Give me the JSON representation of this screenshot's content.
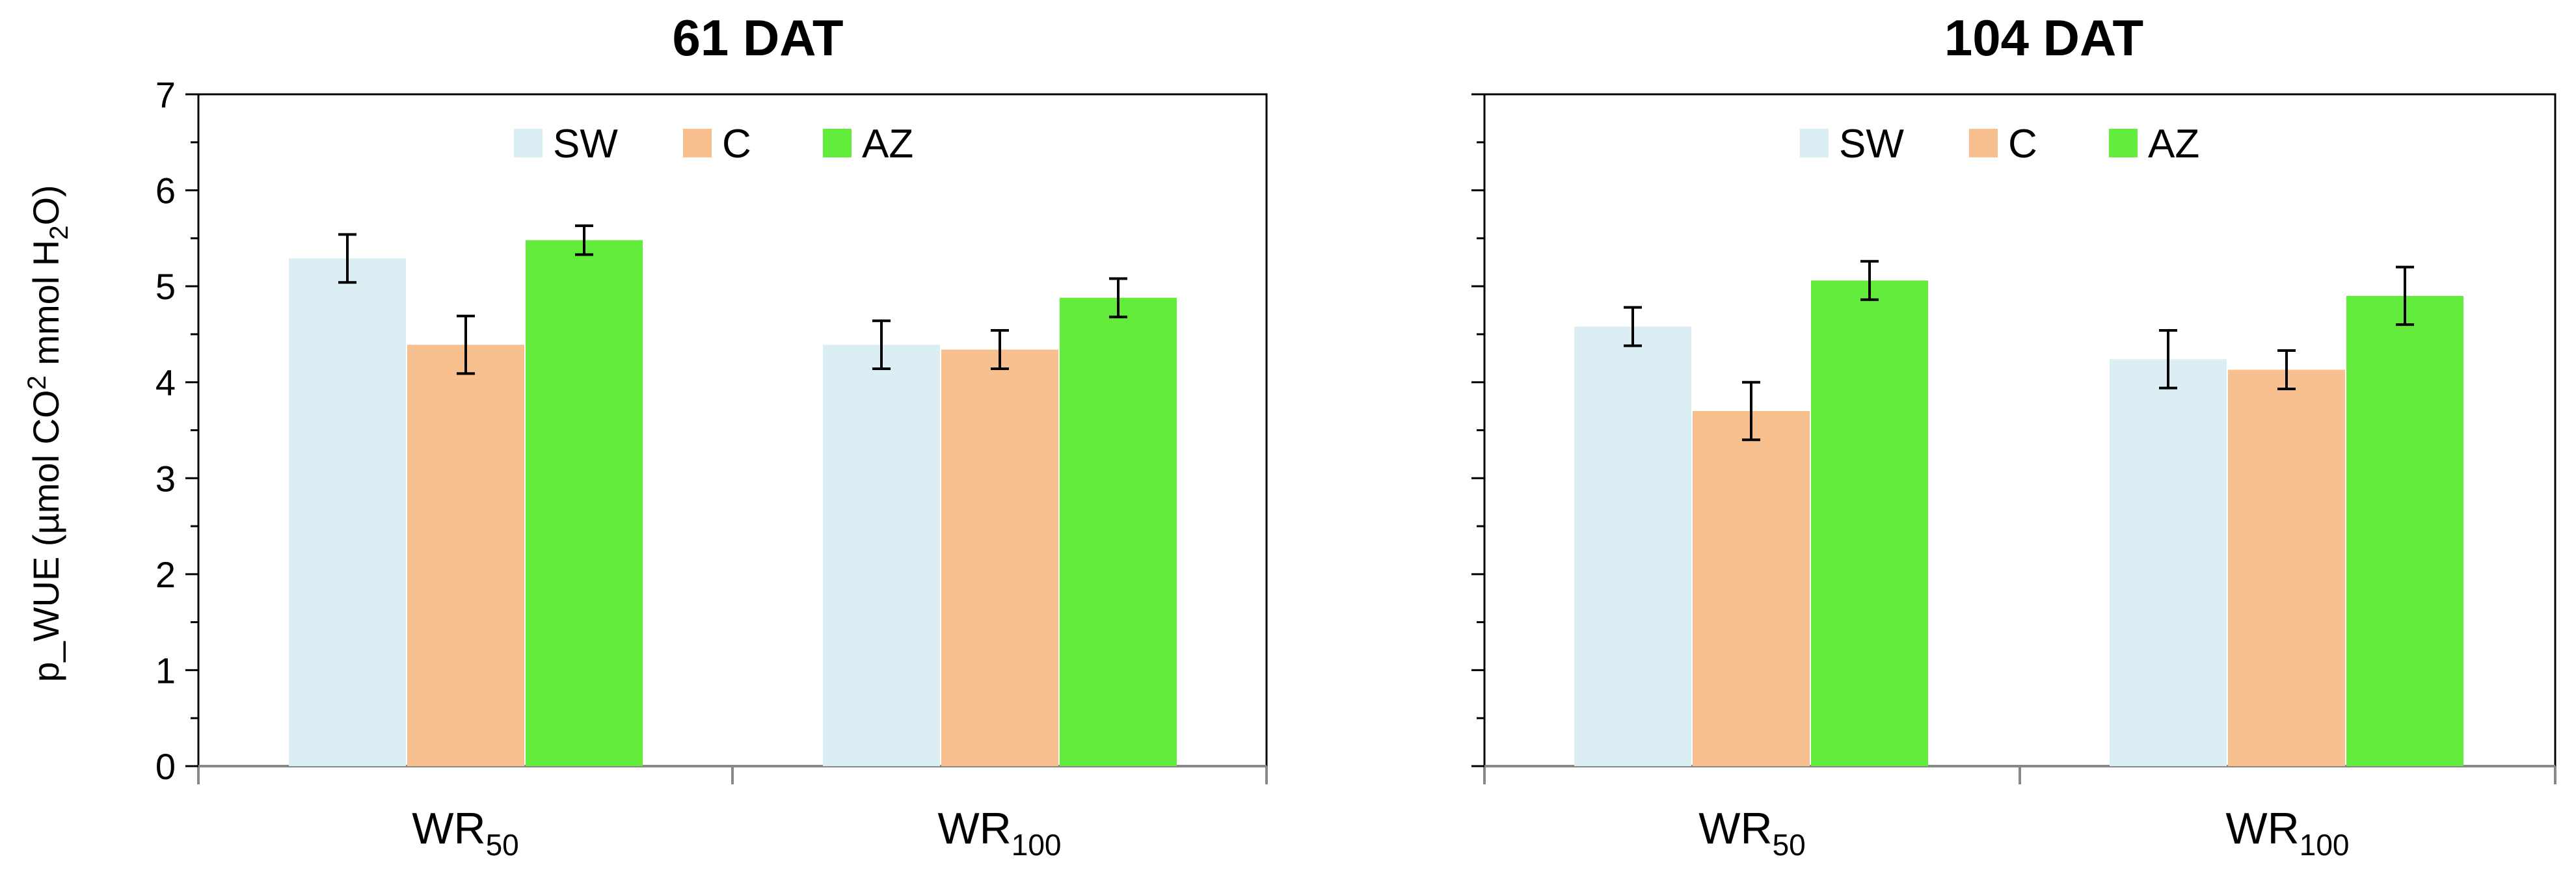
{
  "chart_data": [
    {
      "type": "bar",
      "title": "61 DAT",
      "ylabel": {
        "text": "p_WUE  (µmol CO",
        "sup": "2",
        "middle": " mmol H",
        "sub": "2",
        "end": "O)"
      },
      "ylim": [
        0,
        7
      ],
      "yticks": [
        "0",
        "1",
        "2",
        "3",
        "4",
        "5",
        "6",
        "7"
      ],
      "categories": [
        {
          "base": "WR",
          "sub": "50"
        },
        {
          "base": "WR",
          "sub": "100"
        }
      ],
      "legend_position": "top-center",
      "series": [
        {
          "name": "SW",
          "color": "#DAEEF3",
          "values": [
            5.29,
            4.39
          ],
          "errors": [
            0.25,
            0.25
          ]
        },
        {
          "name": "C",
          "color": "#F8C08E",
          "values": [
            4.39,
            4.34
          ],
          "errors": [
            0.3,
            0.2
          ]
        },
        {
          "name": "AZ",
          "color": "#63EC3B",
          "values": [
            5.48,
            4.88
          ],
          "errors": [
            0.15,
            0.2
          ]
        }
      ]
    },
    {
      "type": "bar",
      "title": "104 DAT",
      "ylim": [
        0,
        7
      ],
      "categories": [
        {
          "base": "WR",
          "sub": "50"
        },
        {
          "base": "WR",
          "sub": "100"
        }
      ],
      "legend_position": "top-center",
      "series": [
        {
          "name": "SW",
          "color": "#DAEEF3",
          "values": [
            4.58,
            4.24
          ],
          "errors": [
            0.2,
            0.3
          ]
        },
        {
          "name": "C",
          "color": "#F8C08E",
          "values": [
            3.7,
            4.13
          ],
          "errors": [
            0.3,
            0.2
          ]
        },
        {
          "name": "AZ",
          "color": "#63EC3B",
          "values": [
            5.06,
            4.9
          ],
          "errors": [
            0.2,
            0.3
          ]
        }
      ]
    }
  ]
}
